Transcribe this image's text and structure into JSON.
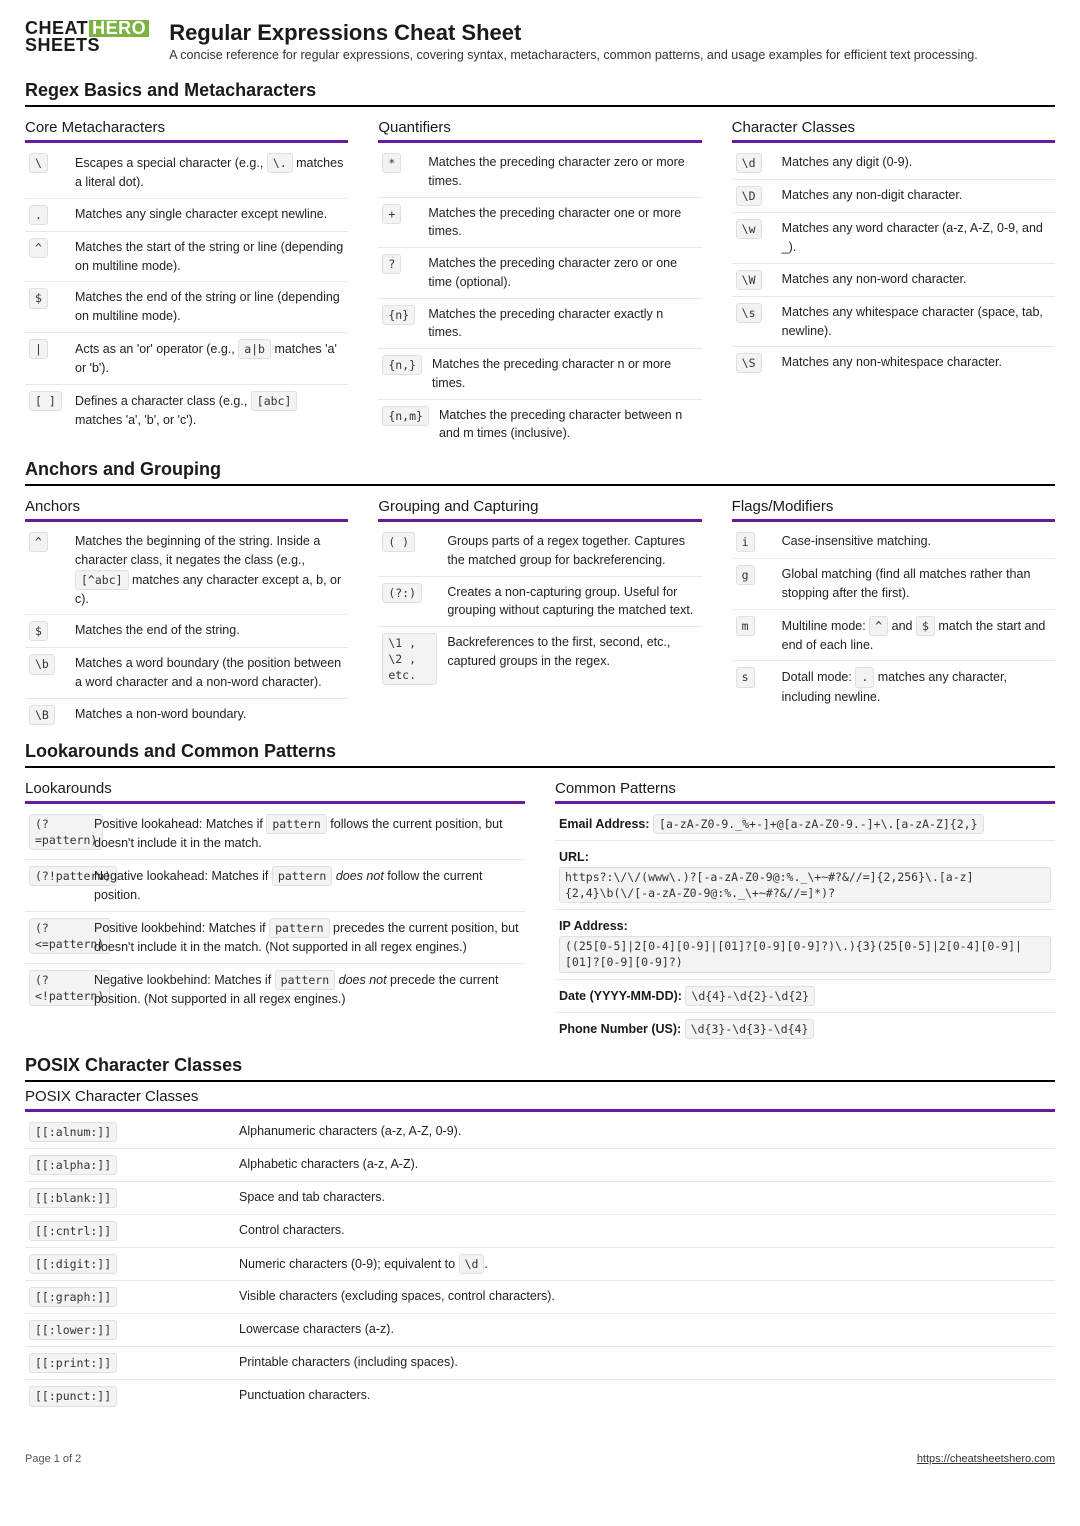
{
  "logo": {
    "line1_a": "CHEAT",
    "line1_b": "HERO",
    "line2": "SHEETS"
  },
  "title": "Regular Expressions Cheat Sheet",
  "subtitle": "A concise reference for regular expressions, covering syntax, metacharacters, common patterns, and usage examples for efficient text processing.",
  "accent_color": "#6a1b9a",
  "s1": {
    "heading": "Regex Basics and Metacharacters",
    "c1": {
      "title": "Core Metacharacters",
      "rows": [
        {
          "t": "\\",
          "d_pre": "Escapes a special character (e.g., ",
          "d_code": "\\.",
          "d_post": " matches a literal dot)."
        },
        {
          "t": ".",
          "d": "Matches any single character except newline."
        },
        {
          "t": "^",
          "d": "Matches the start of the string or line (depending on multiline mode)."
        },
        {
          "t": "$",
          "d": "Matches the end of the string or line (depending on multiline mode)."
        },
        {
          "t": "|",
          "d_pre": "Acts as an 'or' operator (e.g., ",
          "d_code": "a|b",
          "d_post": " matches 'a' or 'b')."
        },
        {
          "t": "[ ]",
          "d_pre": "Defines a character class (e.g., ",
          "d_code": "[abc]",
          "d_post": " matches 'a', 'b', or 'c')."
        }
      ]
    },
    "c2": {
      "title": "Quantifiers",
      "rows": [
        {
          "t": "*",
          "d": "Matches the preceding character zero or more times."
        },
        {
          "t": "+",
          "d": "Matches the preceding character one or more times."
        },
        {
          "t": "?",
          "d": "Matches the preceding character zero or one time (optional)."
        },
        {
          "t": "{n}",
          "d": "Matches the preceding character exactly n times."
        },
        {
          "t": "{n,}",
          "d": "Matches the preceding character n or more times."
        },
        {
          "t": "{n,m}",
          "d": "Matches the preceding character between n and m times (inclusive)."
        }
      ]
    },
    "c3": {
      "title": "Character Classes",
      "rows": [
        {
          "t": "\\d",
          "d": "Matches any digit (0-9)."
        },
        {
          "t": "\\D",
          "d": "Matches any non-digit character."
        },
        {
          "t": "\\w",
          "d": "Matches any word character (a-z, A-Z, 0-9, and _)."
        },
        {
          "t": "\\W",
          "d": "Matches any non-word character."
        },
        {
          "t": "\\s",
          "d": "Matches any whitespace character (space, tab, newline)."
        },
        {
          "t": "\\S",
          "d": "Matches any non-whitespace character."
        }
      ]
    }
  },
  "s2": {
    "heading": "Anchors and Grouping",
    "c1": {
      "title": "Anchors",
      "rows": [
        {
          "t": "^",
          "d_pre": "Matches the beginning of the string. Inside a character class, it negates the class (e.g., ",
          "d_code": "[^abc]",
          "d_post": " matches any character except a, b, or c)."
        },
        {
          "t": "$",
          "d": "Matches the end of the string."
        },
        {
          "t": "\\b",
          "d": "Matches a word boundary (the position between a word character and a non-word character)."
        },
        {
          "t": "\\B",
          "d": "Matches a non-word boundary."
        }
      ]
    },
    "c2": {
      "title": "Grouping and Capturing",
      "rows": [
        {
          "t": "( )",
          "d": "Groups parts of a regex together. Captures the matched group for backreferencing."
        },
        {
          "t": "(?:)",
          "d": "Creates a non-capturing group. Useful for grouping without capturing the matched text."
        },
        {
          "t": "\\1 , \\2 , etc.",
          "d": "Backreferences to the first, second, etc., captured groups in the regex."
        }
      ]
    },
    "c3": {
      "title": "Flags/Modifiers",
      "rows": [
        {
          "t": "i",
          "d": "Case-insensitive matching."
        },
        {
          "t": "g",
          "d": "Global matching (find all matches rather than stopping after the first)."
        },
        {
          "t": "m",
          "d_pre": "Multiline mode: ",
          "d_code": "^",
          "d_mid": " and ",
          "d_code2": "$",
          "d_post": " match the start and end of each line."
        },
        {
          "t": "s",
          "d_pre": "Dotall mode: ",
          "d_code": ".",
          "d_post": " matches any character, including newline."
        }
      ]
    }
  },
  "s3": {
    "heading": "Lookarounds and Common Patterns",
    "c1": {
      "title": "Lookarounds",
      "rows": [
        {
          "t": "(?=pattern)",
          "d_pre": "Positive lookahead: Matches if ",
          "d_code": "pattern",
          "d_post": " follows the current position, but doesn't include it in the match."
        },
        {
          "t": "(?!pattern)",
          "d_pre": "Negative lookahead: Matches if ",
          "d_code": "pattern",
          "d_em": " does not ",
          "d_post2": "follow the current position."
        },
        {
          "t": "(?<=pattern)",
          "d_pre": "Positive lookbehind: Matches if ",
          "d_code": "pattern",
          "d_post": " precedes the current position, but doesn't include it in the match. (Not supported in all regex engines.)"
        },
        {
          "t": "(?<!pattern)",
          "d_pre": "Negative lookbehind: Matches if ",
          "d_code": "pattern",
          "d_em": " does not ",
          "d_post2": "precede the current position. (Not supported in all regex engines.)"
        }
      ]
    },
    "c2": {
      "title": "Common Patterns",
      "items": [
        {
          "label": "Email Address:",
          "code": "[a-zA-Z0-9._%+-]+@[a-zA-Z0-9.-]+\\.[a-zA-Z]{2,}"
        },
        {
          "label": "URL:",
          "code": "https?:\\/\\/(www\\.)?[-a-zA-Z0-9@:%._\\+~#?&//=]{2,256}\\.[a-z]{2,4}\\b(\\/[-a-zA-Z0-9@:%._\\+~#?&//=]*)?"
        },
        {
          "label": "IP Address:",
          "code": "((25[0-5]|2[0-4][0-9]|[01]?[0-9][0-9]?)\\.){3}(25[0-5]|2[0-4][0-9]|[01]?[0-9][0-9]?)"
        },
        {
          "label": "Date (YYYY-MM-DD):",
          "code": "\\d{4}-\\d{2}-\\d{2}"
        },
        {
          "label": "Phone Number (US):",
          "code": "\\d{3}-\\d{3}-\\d{4}"
        }
      ]
    }
  },
  "s4": {
    "heading": "POSIX Character Classes",
    "c1": {
      "title": "POSIX Character Classes",
      "rows": [
        {
          "t": "[[:alnum:]]",
          "d": "Alphanumeric characters (a-z, A-Z, 0-9)."
        },
        {
          "t": "[[:alpha:]]",
          "d": "Alphabetic characters (a-z, A-Z)."
        },
        {
          "t": "[[:blank:]]",
          "d": "Space and tab characters."
        },
        {
          "t": "[[:cntrl:]]",
          "d": "Control characters."
        },
        {
          "t": "[[:digit:]]",
          "d_pre": "Numeric characters (0-9); equivalent to ",
          "d_code": "\\d",
          "d_post": "."
        },
        {
          "t": "[[:graph:]]",
          "d": "Visible characters (excluding spaces, control characters)."
        },
        {
          "t": "[[:lower:]]",
          "d": "Lowercase characters (a-z)."
        },
        {
          "t": "[[:print:]]",
          "d": "Printable characters (including spaces)."
        },
        {
          "t": "[[:punct:]]",
          "d": "Punctuation characters."
        }
      ]
    }
  },
  "footer": {
    "page": "Page 1 of 2",
    "url": "https://cheatsheetshero.com"
  }
}
